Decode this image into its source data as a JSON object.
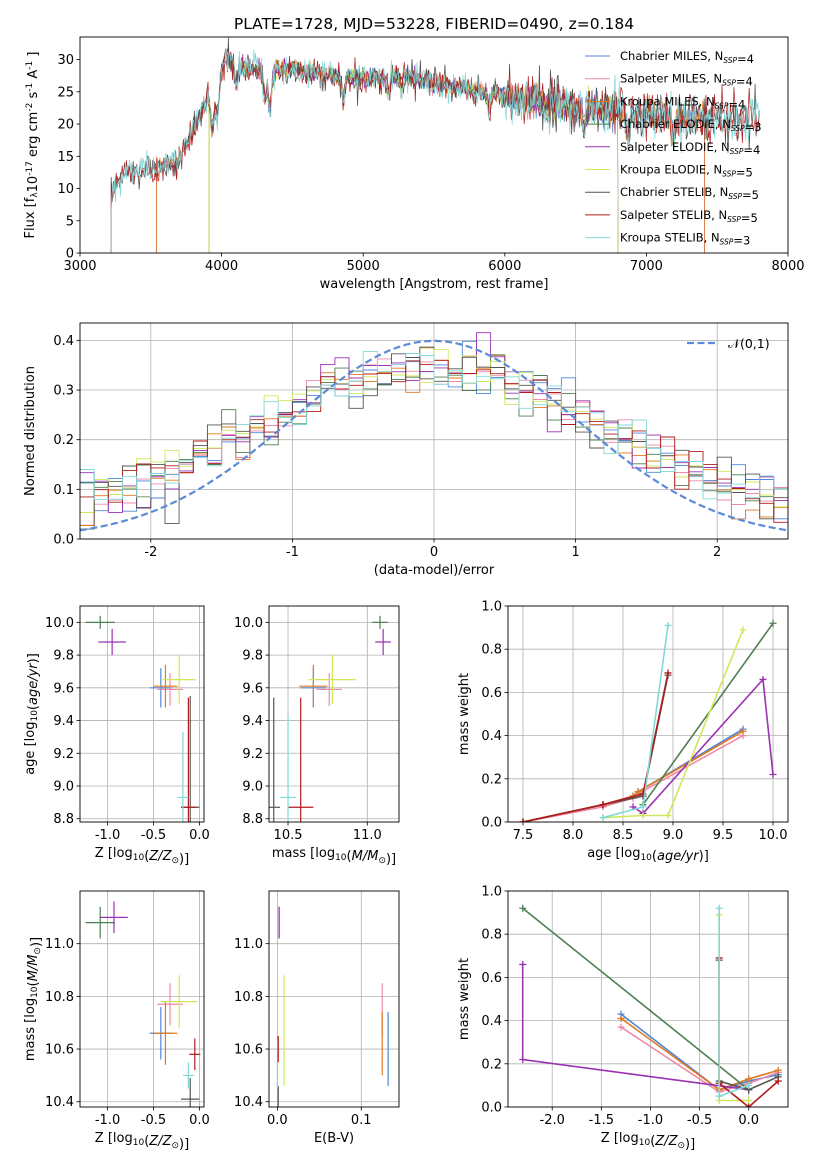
{
  "figure_title": "PLATE=1728, MJD=53228, FIBERID=0490, z=0.184",
  "colors": {
    "Chabrier MILES": "#4f86d8",
    "Salpeter MILES": "#ee8aa8",
    "Kroupa MILES": "#e07a1e",
    "Chabrier ELODIE": "#4e7f52",
    "Salpeter ELODIE": "#9b32b2",
    "Kroupa ELODIE": "#cfe85a",
    "Chabrier STELIB": "#555555",
    "Salpeter STELIB": "#b01c1c",
    "Kroupa STELIB": "#82d8d8",
    "normal": "#5b8bd8"
  },
  "chart_data": [
    {
      "id": "spectrum",
      "type": "line",
      "xlabel": "wavelength [Angstrom, rest frame]",
      "ylabel": "Flux [f_λ10^-17 erg cm^-2 s^-1 A^-1]",
      "xlim": [
        3000,
        8000
      ],
      "ylim": [
        0,
        33.5
      ],
      "xticks": [
        3000,
        4000,
        5000,
        6000,
        7000,
        8000
      ],
      "yticks": [
        0,
        5,
        10,
        15,
        20,
        25,
        30
      ],
      "grid": false,
      "legend_position": "top-right",
      "continuum": [
        [
          3220,
          9
        ],
        [
          3300,
          12.3
        ],
        [
          3500,
          12.8
        ],
        [
          3700,
          14.5
        ],
        [
          3800,
          19
        ],
        [
          3900,
          24
        ],
        [
          3960,
          26
        ],
        [
          4030,
          30
        ],
        [
          4200,
          28.5
        ],
        [
          4500,
          28.5
        ],
        [
          4800,
          27.5
        ],
        [
          5000,
          27
        ],
        [
          5300,
          27.5
        ],
        [
          5600,
          26
        ],
        [
          6000,
          24.5
        ],
        [
          6300,
          23
        ],
        [
          6700,
          22.3
        ],
        [
          7000,
          21.5
        ],
        [
          7300,
          21
        ],
        [
          7500,
          20.8
        ],
        [
          7700,
          20.8
        ],
        [
          7800,
          21
        ]
      ],
      "series": [
        {
          "name": "Chabrier MILES, N_SSP=4",
          "start": 3540,
          "end": 7410
        },
        {
          "name": "Salpeter MILES, N_SSP=4",
          "start": 3540,
          "end": 7410
        },
        {
          "name": "Kroupa MILES, N_SSP=4",
          "start": 3540,
          "end": 7410
        },
        {
          "name": "Chabrier ELODIE, N_SSP=3",
          "start": 3910,
          "end": 6800
        },
        {
          "name": "Salpeter ELODIE, N_SSP=4",
          "start": 3910,
          "end": 6800
        },
        {
          "name": "Kroupa ELODIE, N_SSP=5",
          "start": 3910,
          "end": 6800
        },
        {
          "name": "Chabrier STELIB, N_SSP=5",
          "start": 3220,
          "end": 7800
        },
        {
          "name": "Salpeter STELIB, N_SSP=5",
          "start": 3220,
          "end": 7800
        },
        {
          "name": "Kroupa STELIB, N_SSP=3",
          "start": 3220,
          "end": 7800
        }
      ]
    },
    {
      "id": "residuals",
      "type": "line",
      "xlabel": "(data-model)/error",
      "ylabel": "Normed distribution",
      "xlim": [
        -2.5,
        2.5
      ],
      "ylim": [
        0,
        0.435
      ],
      "xticks": [
        -2,
        -1,
        0,
        1,
        2
      ],
      "yticks": [
        0.0,
        0.1,
        0.2,
        0.3,
        0.4
      ],
      "grid": true,
      "legend": [
        "𝒩(0,1)"
      ],
      "legend_position": "top-right",
      "bin_width": 0.1
    },
    {
      "id": "age_vs_Z",
      "type": "scatter",
      "xlabel": "Z [log10(Z/Z⊙)]",
      "ylabel": "age  [log10(age/yr)]",
      "xlim": [
        -1.3,
        0.05
      ],
      "ylim": [
        8.78,
        10.1
      ],
      "xticks": [
        -1.0,
        -0.5,
        0.0
      ],
      "yticks": [
        8.8,
        9.0,
        9.2,
        9.4,
        9.6,
        9.8,
        10.0
      ],
      "grid": true,
      "points": [
        {
          "model": "Chabrier MILES",
          "x": -0.42,
          "xerr": 0.12,
          "y": 9.6,
          "yerr": 0.12
        },
        {
          "model": "Salpeter MILES",
          "x": -0.32,
          "xerr": 0.14,
          "y": 9.59,
          "yerr": 0.1
        },
        {
          "model": "Kroupa MILES",
          "x": -0.37,
          "xerr": 0.13,
          "y": 9.61,
          "yerr": 0.13
        },
        {
          "model": "Chabrier ELODIE",
          "x": -1.08,
          "xerr": 0.16,
          "y": 10.0,
          "yerr": 0.04
        },
        {
          "model": "Salpeter ELODIE",
          "x": -0.95,
          "xerr": 0.15,
          "y": 9.88,
          "yerr": 0.08
        },
        {
          "model": "Kroupa ELODIE",
          "x": -0.22,
          "xerr": 0.18,
          "y": 9.65,
          "yerr": 0.15
        },
        {
          "model": "Chabrier STELIB",
          "x": -0.1,
          "xerr": 0.1,
          "y": 8.87,
          "yerr": 0.68
        },
        {
          "model": "Salpeter STELIB",
          "x": -0.12,
          "xerr": 0.08,
          "y": 8.87,
          "yerr": 0.67
        },
        {
          "model": "Kroupa STELIB",
          "x": -0.18,
          "xerr": 0.06,
          "y": 8.93,
          "yerr": 0.4
        }
      ]
    },
    {
      "id": "age_vs_mass",
      "type": "scatter",
      "xlabel": "mass [log10(M/M⊙)]",
      "ylabel": "",
      "xlim": [
        10.38,
        11.2
      ],
      "ylim": [
        8.78,
        10.1
      ],
      "xticks": [
        10.5,
        11.0
      ],
      "yticks": [
        8.8,
        9.0,
        9.2,
        9.4,
        9.6,
        9.8,
        10.0
      ],
      "grid": true,
      "points": [
        {
          "model": "Chabrier MILES",
          "x": 10.66,
          "xerr": 0.08,
          "y": 9.6,
          "yerr": 0.12
        },
        {
          "model": "Salpeter MILES",
          "x": 10.76,
          "xerr": 0.08,
          "y": 9.59,
          "yerr": 0.1
        },
        {
          "model": "Kroupa MILES",
          "x": 10.66,
          "xerr": 0.09,
          "y": 9.61,
          "yerr": 0.13
        },
        {
          "model": "Chabrier ELODIE",
          "x": 11.08,
          "xerr": 0.05,
          "y": 10.0,
          "yerr": 0.04
        },
        {
          "model": "Salpeter ELODIE",
          "x": 11.1,
          "xerr": 0.05,
          "y": 9.88,
          "yerr": 0.08
        },
        {
          "model": "Kroupa ELODIE",
          "x": 10.78,
          "xerr": 0.15,
          "y": 9.65,
          "yerr": 0.15
        },
        {
          "model": "Chabrier STELIB",
          "x": 10.41,
          "xerr": 0.04,
          "y": 8.87,
          "yerr": 0.67
        },
        {
          "model": "Salpeter STELIB",
          "x": 10.58,
          "xerr": 0.08,
          "y": 8.87,
          "yerr": 0.67
        },
        {
          "model": "Kroupa STELIB",
          "x": 10.5,
          "xerr": 0.05,
          "y": 8.93,
          "yerr": 0.5
        }
      ]
    },
    {
      "id": "massweight_vs_age",
      "type": "line",
      "xlabel": "age  [log10(age/yr)]",
      "ylabel": "mass weight",
      "xlim": [
        7.35,
        10.15
      ],
      "ylim": [
        0,
        1.0
      ],
      "xticks": [
        7.5,
        8.0,
        8.5,
        9.0,
        9.5,
        10.0
      ],
      "yticks": [
        0.0,
        0.2,
        0.4,
        0.6,
        0.8,
        1.0
      ],
      "grid": true,
      "series": [
        {
          "name": "Chabrier MILES",
          "x": [
            7.5,
            8.3,
            8.6,
            8.65,
            9.7
          ],
          "y": [
            0.0,
            0.08,
            0.12,
            0.14,
            0.43
          ]
        },
        {
          "name": "Salpeter MILES",
          "x": [
            7.5,
            8.3,
            8.6,
            8.65,
            9.7
          ],
          "y": [
            0.0,
            0.07,
            0.11,
            0.13,
            0.4
          ]
        },
        {
          "name": "Kroupa MILES",
          "x": [
            7.5,
            8.3,
            8.6,
            8.65,
            9.7
          ],
          "y": [
            0.0,
            0.08,
            0.12,
            0.14,
            0.42
          ]
        },
        {
          "name": "Chabrier ELODIE",
          "x": [
            8.7,
            10.0
          ],
          "y": [
            0.08,
            0.92
          ]
        },
        {
          "name": "Salpeter ELODIE",
          "x": [
            8.6,
            8.7,
            9.9,
            10.0
          ],
          "y": [
            0.07,
            0.04,
            0.66,
            0.22
          ]
        },
        {
          "name": "Kroupa ELODIE",
          "x": [
            8.3,
            8.7,
            8.95,
            9.7
          ],
          "y": [
            0.02,
            0.03,
            0.03,
            0.89
          ]
        },
        {
          "name": "Chabrier STELIB",
          "x": [
            7.5,
            8.3,
            8.7,
            8.95
          ],
          "y": [
            0.0,
            0.08,
            0.12,
            0.68
          ]
        },
        {
          "name": "Salpeter STELIB",
          "x": [
            7.5,
            8.3,
            8.7,
            8.95
          ],
          "y": [
            0.0,
            0.08,
            0.13,
            0.69
          ]
        },
        {
          "name": "Kroupa STELIB",
          "x": [
            8.3,
            8.7,
            8.95
          ],
          "y": [
            0.02,
            0.07,
            0.91
          ]
        }
      ]
    },
    {
      "id": "mass_vs_Z",
      "type": "scatter",
      "xlabel": "Z [log10(Z/Z⊙)]",
      "ylabel": "mass [log10(M/M⊙)]",
      "xlim": [
        -1.3,
        0.05
      ],
      "ylim": [
        10.38,
        11.2
      ],
      "xticks": [
        -1.0,
        -0.5,
        0.0
      ],
      "yticks": [
        10.4,
        10.6,
        10.8,
        11.0
      ],
      "grid": true,
      "points": [
        {
          "model": "Chabrier MILES",
          "x": -0.42,
          "xerr": 0.12,
          "y": 10.66,
          "yerr": 0.1
        },
        {
          "model": "Salpeter MILES",
          "x": -0.32,
          "xerr": 0.14,
          "y": 10.77,
          "yerr": 0.08
        },
        {
          "model": "Kroupa MILES",
          "x": -0.37,
          "xerr": 0.13,
          "y": 10.66,
          "yerr": 0.12
        },
        {
          "model": "Chabrier ELODIE",
          "x": -1.08,
          "xerr": 0.16,
          "y": 11.08,
          "yerr": 0.06
        },
        {
          "model": "Salpeter ELODIE",
          "x": -0.93,
          "xerr": 0.15,
          "y": 11.1,
          "yerr": 0.06
        },
        {
          "model": "Kroupa ELODIE",
          "x": -0.22,
          "xerr": 0.2,
          "y": 10.78,
          "yerr": 0.1
        },
        {
          "model": "Chabrier STELIB",
          "x": -0.1,
          "xerr": 0.1,
          "y": 10.41,
          "yerr": 0.08
        },
        {
          "model": "Salpeter STELIB",
          "x": -0.05,
          "xerr": 0.06,
          "y": 10.58,
          "yerr": 0.06
        },
        {
          "model": "Kroupa STELIB",
          "x": -0.12,
          "xerr": 0.06,
          "y": 10.5,
          "yerr": 0.05
        }
      ]
    },
    {
      "id": "mass_vs_EBV",
      "type": "scatter",
      "xlabel": "E(B-V)",
      "ylabel": "",
      "xlim": [
        -0.01,
        0.145
      ],
      "ylim": [
        10.38,
        11.2
      ],
      "xticks": [
        0.0,
        0.1
      ],
      "yticks": [
        10.4,
        10.6,
        10.8,
        11.0
      ],
      "grid": true,
      "points": [
        {
          "model": "Chabrier MILES",
          "x": 0.132,
          "y": 10.6,
          "yerr": 0.14
        },
        {
          "model": "Salpeter MILES",
          "x": 0.125,
          "y": 10.75,
          "yerr": 0.1
        },
        {
          "model": "Kroupa MILES",
          "x": 0.125,
          "y": 10.62,
          "yerr": 0.12
        },
        {
          "model": "Chabrier ELODIE",
          "x": 0.002,
          "y": 11.08,
          "yerr": 0.06
        },
        {
          "model": "Salpeter ELODIE",
          "x": 0.002,
          "y": 11.08,
          "yerr": 0.06
        },
        {
          "model": "Kroupa ELODIE",
          "x": 0.008,
          "y": 10.67,
          "yerr": 0.21
        },
        {
          "model": "Chabrier STELIB",
          "x": 0.001,
          "y": 10.41,
          "yerr": 0.05
        },
        {
          "model": "Salpeter STELIB",
          "x": 0.001,
          "y": 10.6,
          "yerr": 0.05
        },
        {
          "model": "Kroupa STELIB",
          "x": 0.0,
          "y": 10.5,
          "yerr": 0.05
        }
      ]
    },
    {
      "id": "massweight_vs_Z",
      "type": "line",
      "xlabel": "Z [log10(Z/Z⊙)]",
      "ylabel": "mass weight",
      "xlim": [
        -2.45,
        0.4
      ],
      "ylim": [
        0,
        1.0
      ],
      "xticks": [
        -2.0,
        -1.5,
        -1.0,
        -0.5,
        0.0
      ],
      "yticks": [
        0.0,
        0.2,
        0.4,
        0.6,
        0.8,
        1.0
      ],
      "grid": true,
      "series": [
        {
          "name": "Chabrier MILES",
          "x": [
            -1.3,
            -0.3,
            0.0,
            0.3
          ],
          "y": [
            0.43,
            0.08,
            0.12,
            0.15
          ]
        },
        {
          "name": "Salpeter MILES",
          "x": [
            -1.3,
            -0.3,
            0.0,
            0.3
          ],
          "y": [
            0.37,
            0.07,
            0.11,
            0.16
          ]
        },
        {
          "name": "Kroupa MILES",
          "x": [
            -1.3,
            -0.3,
            0.0,
            0.3
          ],
          "y": [
            0.41,
            0.08,
            0.13,
            0.17
          ]
        },
        {
          "name": "Chabrier ELODIE",
          "x": [
            -2.3,
            0.0
          ],
          "y": [
            0.92,
            0.08
          ]
        },
        {
          "name": "Salpeter ELODIE",
          "x": [
            -2.3,
            -2.3,
            0.0
          ],
          "y": [
            0.66,
            0.22,
            0.08
          ]
        },
        {
          "name": "Kroupa ELODIE",
          "x": [
            -0.3,
            -0.3,
            0.0
          ],
          "y": [
            0.89,
            0.03,
            0.03
          ]
        },
        {
          "name": "Chabrier STELIB",
          "x": [
            -0.3,
            -0.3,
            0.0,
            0.3
          ],
          "y": [
            0.68,
            0.12,
            0.08,
            0.14
          ]
        },
        {
          "name": "Salpeter STELIB",
          "x": [
            -0.3,
            -0.3,
            0.0,
            0.3
          ],
          "y": [
            0.69,
            0.11,
            0.0,
            0.12
          ]
        },
        {
          "name": "Kroupa STELIB",
          "x": [
            -0.3,
            -0.3,
            0.0
          ],
          "y": [
            0.92,
            0.05,
            0.1
          ]
        }
      ]
    }
  ]
}
